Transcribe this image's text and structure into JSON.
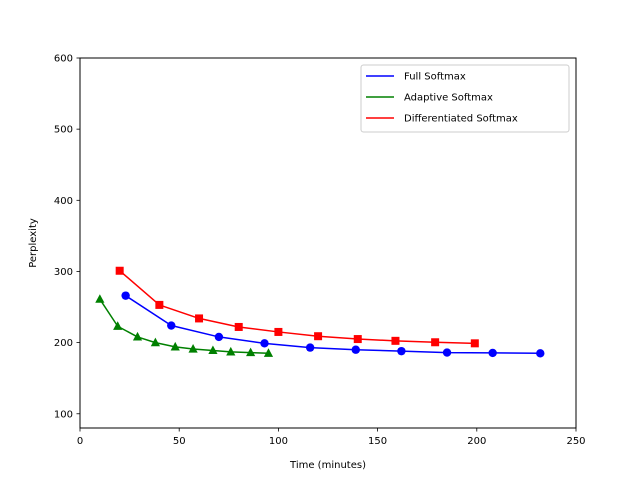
{
  "chart_data": {
    "type": "line",
    "xlabel": "Time (minutes)",
    "ylabel": "Perplexity",
    "xlim": [
      0,
      250
    ],
    "ylim": [
      80,
      600
    ],
    "xticks": [
      0,
      50,
      100,
      150,
      200,
      250
    ],
    "yticks": [
      100,
      200,
      300,
      400,
      500,
      600
    ],
    "grid": false,
    "legend_position": "top-right",
    "series": [
      {
        "name": "Full Softmax",
        "color": "#0000ff",
        "marker": "circle",
        "points": [
          [
            23,
            266
          ],
          [
            46,
            224
          ],
          [
            70,
            208
          ],
          [
            93,
            199
          ],
          [
            116,
            193
          ],
          [
            139,
            190
          ],
          [
            162,
            188
          ],
          [
            185,
            186
          ],
          [
            208,
            185.5
          ],
          [
            232,
            185
          ]
        ]
      },
      {
        "name": "Adaptive Softmax",
        "color": "#008000",
        "marker": "triangle",
        "points": [
          [
            10,
            261
          ],
          [
            19,
            223
          ],
          [
            29,
            208
          ],
          [
            38,
            200
          ],
          [
            48,
            194
          ],
          [
            57,
            191
          ],
          [
            67,
            189
          ],
          [
            76,
            187
          ],
          [
            86,
            186
          ],
          [
            95,
            185
          ]
        ]
      },
      {
        "name": "Differentiated Softmax",
        "color": "#ff0000",
        "marker": "square",
        "points": [
          [
            20,
            301
          ],
          [
            40,
            253
          ],
          [
            60,
            234
          ],
          [
            80,
            222
          ],
          [
            100,
            215
          ],
          [
            120,
            209
          ],
          [
            140,
            205
          ],
          [
            159,
            202.5
          ],
          [
            179,
            200.5
          ],
          [
            199,
            199
          ]
        ]
      }
    ]
  }
}
